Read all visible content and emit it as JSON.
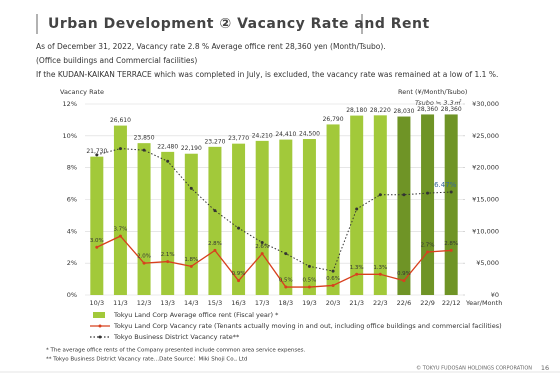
{
  "header": {
    "title": "Urban Development ② Vacancy Rate and Rent",
    "notes": [
      "As of December 31, 2022, Vacancy rate 2.8 % Average office rent 28,360 yen (Month/Tsubo).",
      "(Office buildings and Commercial facilities)",
      "If the KUDAN-KAIKAN TERRACE which was completed in July, is excluded, the vacancy rate was remained at a low of 1.1 %."
    ]
  },
  "chart_data": {
    "type": "combo",
    "ylabel": "Vacancy Rate",
    "y2label": "Rent (¥/Month/Tsubo)",
    "y2note": "Tsubo ≒ 3.3㎡",
    "xlabel": "Year/Month",
    "categories": [
      "10/3",
      "11/3",
      "12/3",
      "13/3",
      "14/3",
      "15/3",
      "16/3",
      "17/3",
      "18/3",
      "19/3",
      "20/3",
      "21/3",
      "22/3",
      "22/6",
      "22/9",
      "22/12"
    ],
    "ylim": [
      0,
      12
    ],
    "yticks": [
      {
        "value": 0,
        "label": "0%"
      },
      {
        "value": 2,
        "label": "2%"
      },
      {
        "value": 4,
        "label": "4%"
      },
      {
        "value": 6,
        "label": "6%"
      },
      {
        "value": 8,
        "label": "8%"
      },
      {
        "value": 10,
        "label": "10%"
      },
      {
        "value": 12,
        "label": "12%"
      }
    ],
    "y2lim": [
      0,
      30000
    ],
    "y2ticks": [
      {
        "value": 0,
        "label": "¥0"
      },
      {
        "value": 5000,
        "label": "¥5,000"
      },
      {
        "value": 10000,
        "label": "¥10,000"
      },
      {
        "value": 15000,
        "label": "¥15,000"
      },
      {
        "value": 20000,
        "label": "¥20,000"
      },
      {
        "value": 25000,
        "label": "¥25,000"
      },
      {
        "value": 30000,
        "label": "¥30,000"
      }
    ],
    "grid": true,
    "series": [
      {
        "name": "Tokyu Land Corp Average office rent (Fiscal year) *",
        "type": "bar",
        "axis": "y2",
        "color": "#a2c93a",
        "colors": [
          "#a2c93a",
          "#a2c93a",
          "#a2c93a",
          "#a2c93a",
          "#a2c93a",
          "#a2c93a",
          "#a2c93a",
          "#a2c93a",
          "#a2c93a",
          "#a2c93a",
          "#a2c93a",
          "#a2c93a",
          "#a2c93a",
          "#6f9426",
          "#6f9426",
          "#6f9426"
        ],
        "values": [
          21730,
          26610,
          23850,
          22480,
          22190,
          23270,
          23770,
          24210,
          24410,
          24500,
          26790,
          28180,
          28220,
          28030,
          28360,
          28360
        ],
        "value_labels": [
          "21,730",
          "26,610",
          "23,850",
          "22,480",
          "22,190",
          "23,270",
          "23,770",
          "24,210",
          "24,410",
          "24,500",
          "26,790",
          "28,180",
          "28,220",
          "28,030",
          "28,360",
          "28,360"
        ]
      },
      {
        "name": "Tokyu Land Corp Vacancy rate (Tenants actually moving in and out, including office buildings and commercial facilities)",
        "type": "line",
        "color": "#d8401e",
        "dashed": false,
        "values": [
          3.0,
          3.7,
          2.0,
          2.1,
          1.8,
          2.8,
          0.9,
          2.6,
          0.5,
          0.5,
          0.6,
          1.3,
          1.3,
          0.9,
          2.7,
          2.8
        ],
        "value_labels": [
          "3.0%",
          "3.7%",
          "2.0%",
          "2.1%",
          "1.8%",
          "2.8%",
          "0.9%",
          "2.6%",
          "0.5%",
          "0.5%",
          "0.6%",
          "1.3%",
          "1.3%",
          "0.9%",
          "2.7%",
          "2.8%"
        ]
      },
      {
        "name": "Tokyo Business District Vacancy rate**",
        "type": "line",
        "color": "#333333",
        "dashed": true,
        "values": [
          8.8,
          9.2,
          9.1,
          8.4,
          6.7,
          5.3,
          4.2,
          3.3,
          2.6,
          1.8,
          1.5,
          5.4,
          6.3,
          6.3,
          6.4,
          6.47
        ],
        "value_labels": [
          null,
          null,
          null,
          null,
          null,
          null,
          null,
          null,
          null,
          null,
          null,
          null,
          null,
          null,
          null,
          "6.47%"
        ]
      }
    ]
  },
  "footnotes": [
    "* The average office rents of the Company presented include common area service expenses.",
    "** Tokyo Business District Vacancy rate…Date Source：Miki Shoji Co., Ltd"
  ],
  "footer": {
    "copyright": "© TOKYU FUDOSAN HOLDINGS CORPORATION",
    "page": "16"
  }
}
